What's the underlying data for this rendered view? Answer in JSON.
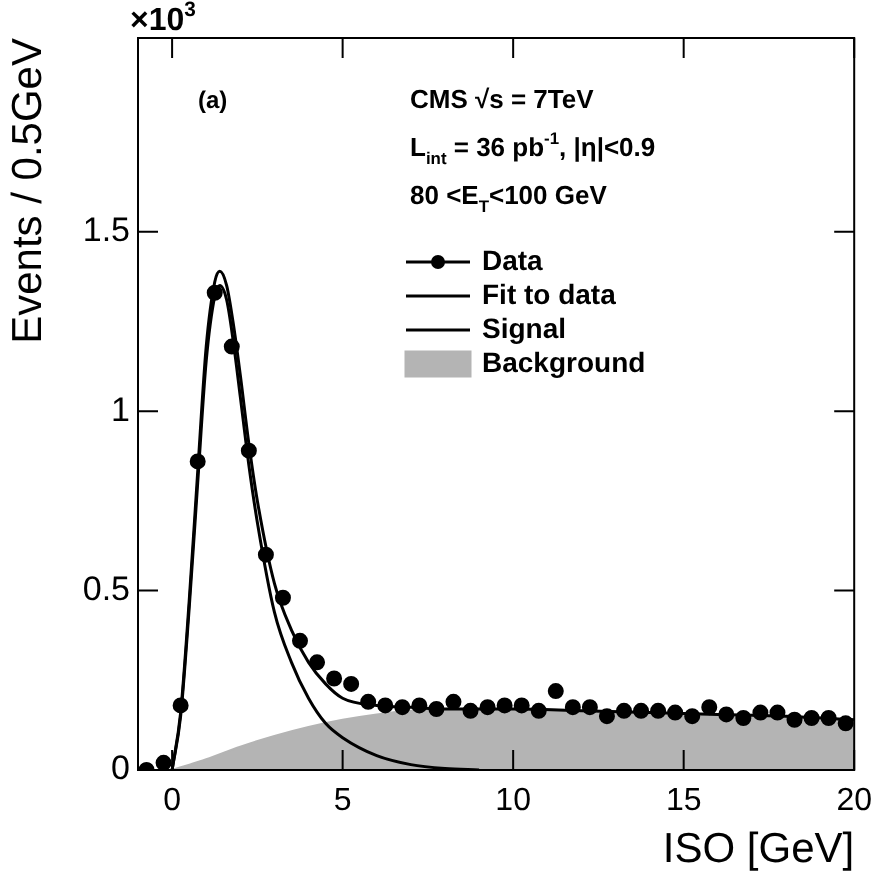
{
  "chart_data": {
    "type": "scatter",
    "xlabel": "ISO [GeV]",
    "ylabel": "Events / 0.5GeV",
    "annotations": [
      "×10$^{3}$",
      "(a)",
      "CMS √s = 7TeV",
      "L$_{int}$ = 36 pb$^{-1}$, |η|<0.9",
      "80 <E$_{T}$<100 GeV"
    ],
    "xlim": [
      -1,
      20
    ],
    "xticks": [
      0,
      5,
      10,
      15,
      20
    ],
    "ylim": [
      0,
      2.04
    ],
    "yticks": [
      0,
      0.5,
      1,
      1.5
    ],
    "grid": false,
    "legend": "top right",
    "series": [
      {
        "name": "Background",
        "type": "area",
        "color": "#b4b4b4",
        "x": [
          0,
          1,
          2,
          3,
          4,
          5,
          6,
          7,
          8,
          10,
          12,
          14,
          16,
          18,
          20
        ],
        "values": [
          0,
          0.03,
          0.065,
          0.095,
          0.12,
          0.14,
          0.155,
          0.165,
          0.17,
          0.17,
          0.165,
          0.16,
          0.155,
          0.15,
          0.14
        ]
      },
      {
        "name": "Signal",
        "type": "line",
        "color": "#000000",
        "x": [
          0,
          0.25,
          0.5,
          0.75,
          1,
          1.25,
          1.4,
          1.6,
          1.8,
          2,
          2.25,
          2.5,
          3,
          3.5,
          4,
          4.5,
          5,
          6,
          7,
          8,
          9
        ],
        "values": [
          0,
          0.15,
          0.45,
          0.8,
          1.14,
          1.32,
          1.35,
          1.31,
          1.19,
          1.04,
          0.85,
          0.69,
          0.44,
          0.3,
          0.2,
          0.13,
          0.09,
          0.04,
          0.015,
          0.004,
          0
        ]
      },
      {
        "name": "Fit to data",
        "type": "line",
        "color": "#000000",
        "x": [
          0,
          0.25,
          0.5,
          0.75,
          1,
          1.25,
          1.4,
          1.6,
          1.8,
          2,
          2.25,
          2.5,
          3,
          3.5,
          4,
          4.5,
          5,
          6,
          7,
          8,
          10,
          12,
          14,
          16,
          18,
          20
        ],
        "values": [
          0,
          0.16,
          0.47,
          0.83,
          1.18,
          1.36,
          1.39,
          1.35,
          1.24,
          1.1,
          0.91,
          0.75,
          0.52,
          0.39,
          0.3,
          0.24,
          0.2,
          0.18,
          0.175,
          0.17,
          0.17,
          0.165,
          0.16,
          0.155,
          0.15,
          0.14
        ]
      },
      {
        "name": "Data",
        "color": "#000000",
        "marker": "circle",
        "x": [
          -0.75,
          -0.25,
          0.25,
          0.75,
          1.25,
          1.75,
          2.25,
          2.75,
          3.25,
          3.75,
          4.25,
          4.75,
          5.25,
          5.75,
          6.25,
          6.75,
          7.25,
          7.75,
          8.25,
          8.75,
          9.25,
          9.75,
          10.25,
          10.75,
          11.25,
          11.75,
          12.25,
          12.75,
          13.25,
          13.75,
          14.25,
          14.75,
          15.25,
          15.75,
          16.25,
          16.75,
          17.25,
          17.75,
          18.25,
          18.75,
          19.25,
          19.75
        ],
        "values": [
          0,
          0.02,
          0.18,
          0.86,
          1.33,
          1.18,
          0.89,
          0.6,
          0.48,
          0.36,
          0.3,
          0.255,
          0.24,
          0.19,
          0.18,
          0.175,
          0.18,
          0.17,
          0.19,
          0.165,
          0.175,
          0.18,
          0.18,
          0.165,
          0.22,
          0.175,
          0.175,
          0.15,
          0.165,
          0.165,
          0.165,
          0.16,
          0.15,
          0.175,
          0.155,
          0.145,
          0.16,
          0.16,
          0.14,
          0.145,
          0.145,
          0.13
        ]
      }
    ]
  }
}
